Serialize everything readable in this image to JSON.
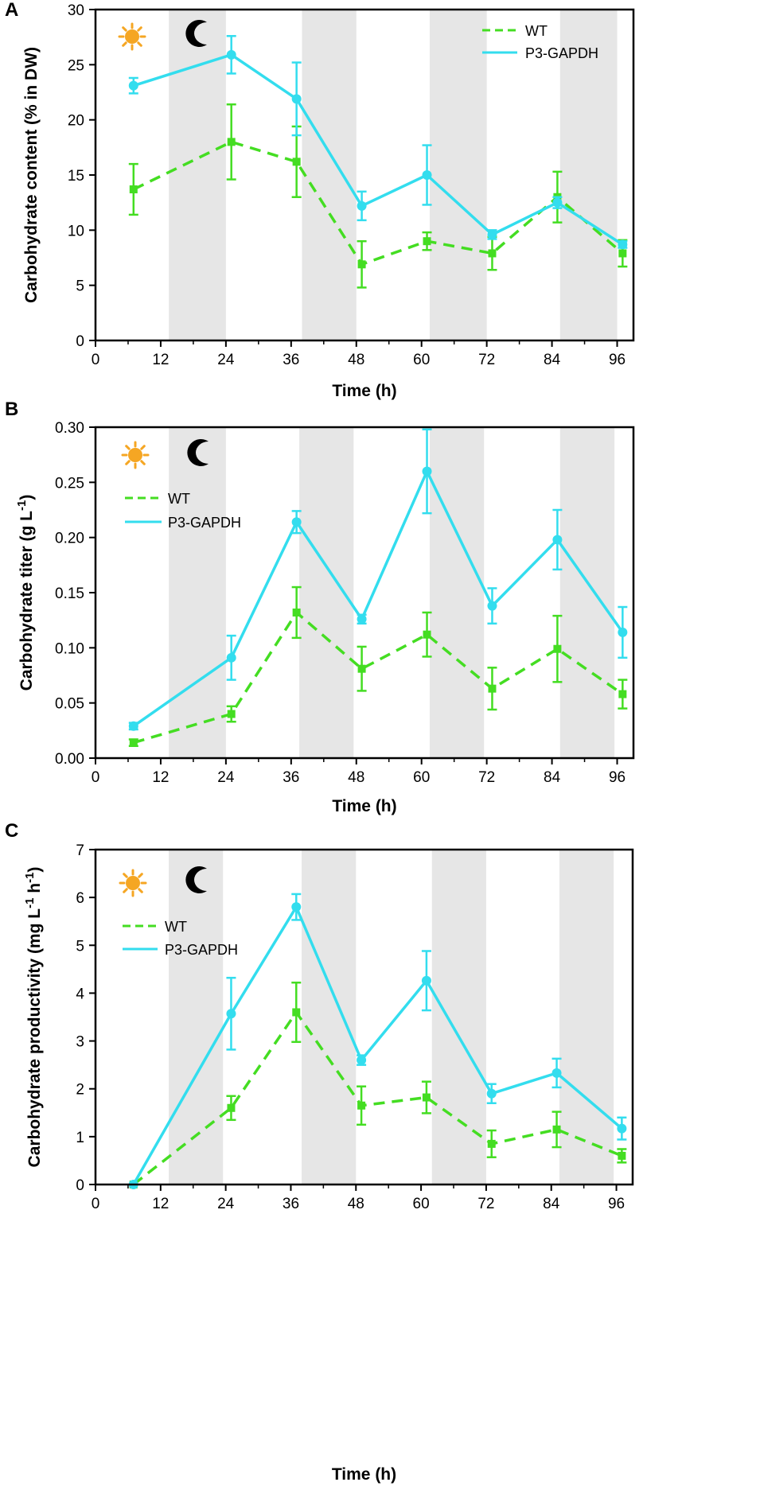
{
  "colors": {
    "wt": "#44dd22",
    "p3": "#33ddee",
    "shade": "#e6e6e6",
    "sun": "#f5a623",
    "moon": "#000000",
    "axis": "#000000"
  },
  "legend": {
    "wt": "WT",
    "p3": "P3-GAPDH"
  },
  "icons": {
    "sun": "sun-icon",
    "moon": "moon-icon"
  },
  "chart_data": [
    {
      "panel_label": "A",
      "type": "line",
      "title": "",
      "xlabel": "Time (h)",
      "ylabel": "Carbohydrate content (% in DW)",
      "xlim": [
        0,
        99
      ],
      "ylim": [
        0,
        30
      ],
      "xticks": [
        "0",
        "12",
        "24",
        "36",
        "48",
        "60",
        "72",
        "84",
        "96"
      ],
      "yticks": [
        "0",
        "5",
        "10",
        "15",
        "20",
        "25",
        "30"
      ],
      "dark_periods": [
        [
          13.5,
          24
        ],
        [
          38,
          48
        ],
        [
          61.5,
          72
        ],
        [
          85.5,
          96
        ]
      ],
      "legend_position": "top-right",
      "x": [
        7,
        25,
        37,
        49,
        61,
        73,
        85,
        97
      ],
      "series": [
        {
          "name": "WT",
          "values": [
            13.7,
            18.0,
            16.2,
            6.9,
            9.0,
            7.9,
            13.0,
            7.9
          ],
          "errors": [
            2.3,
            3.4,
            3.2,
            2.1,
            0.8,
            1.5,
            2.3,
            1.2
          ]
        },
        {
          "name": "P3-GAPDH",
          "values": [
            23.1,
            25.9,
            21.9,
            12.2,
            15.0,
            9.6,
            12.5,
            8.7
          ],
          "errors": [
            0.7,
            1.7,
            3.3,
            1.3,
            2.7,
            0.4,
            0.5,
            0.3
          ]
        }
      ]
    },
    {
      "panel_label": "B",
      "type": "line",
      "title": "",
      "xlabel": "Time (h)",
      "ylabel": "Carbohydrate titer  (g L",
      "ylabel_sup": "-1",
      "ylabel_end": ")",
      "xlim": [
        0,
        99
      ],
      "ylim": [
        0,
        0.3
      ],
      "xticks": [
        "0",
        "12",
        "24",
        "36",
        "48",
        "60",
        "72",
        "84",
        "96"
      ],
      "yticks": [
        "0.00",
        "0.05",
        "0.10",
        "0.15",
        "0.20",
        "0.25",
        "0.30"
      ],
      "dark_periods": [
        [
          13.5,
          24
        ],
        [
          37.5,
          47.5
        ],
        [
          61.5,
          71.5
        ],
        [
          85.5,
          95.5
        ]
      ],
      "legend_position": "top-left",
      "x": [
        7,
        25,
        37,
        49,
        61,
        73,
        85,
        97
      ],
      "series": [
        {
          "name": "WT",
          "values": [
            0.014,
            0.04,
            0.132,
            0.081,
            0.112,
            0.063,
            0.099,
            0.058
          ],
          "errors": [
            0.003,
            0.007,
            0.023,
            0.02,
            0.02,
            0.019,
            0.03,
            0.013
          ]
        },
        {
          "name": "P3-GAPDH",
          "values": [
            0.029,
            0.091,
            0.214,
            0.126,
            0.26,
            0.138,
            0.198,
            0.114
          ],
          "errors": [
            0.003,
            0.02,
            0.01,
            0.004,
            0.038,
            0.016,
            0.027,
            0.023
          ]
        }
      ]
    },
    {
      "panel_label": "C",
      "type": "line",
      "title": "",
      "xlabel": "Time (h)",
      "ylabel": "Carbohydrate productivity   (mg L",
      "ylabel_sup": "-1",
      "ylabel_mid": " h",
      "ylabel_sup2": "-1",
      "ylabel_end": ")",
      "xlim": [
        0,
        99
      ],
      "ylim": [
        0,
        7
      ],
      "xticks": [
        "0",
        "12",
        "24",
        "36",
        "48",
        "60",
        "72",
        "84",
        "96"
      ],
      "yticks": [
        "0",
        "1",
        "2",
        "3",
        "4",
        "5",
        "6",
        "7"
      ],
      "dark_periods": [
        [
          13.5,
          23.5
        ],
        [
          38,
          48
        ],
        [
          62,
          72
        ],
        [
          85.5,
          95.5
        ]
      ],
      "legend_position": "top-left",
      "x": [
        7,
        25,
        37,
        49,
        61,
        73,
        85,
        97
      ],
      "series": [
        {
          "name": "WT",
          "values": [
            0.0,
            1.6,
            3.6,
            1.65,
            1.82,
            0.85,
            1.15,
            0.6
          ],
          "errors": [
            0,
            0.25,
            0.62,
            0.4,
            0.33,
            0.28,
            0.37,
            0.14
          ]
        },
        {
          "name": "P3-GAPDH",
          "values": [
            0.0,
            3.57,
            5.8,
            2.6,
            4.26,
            1.9,
            2.33,
            1.17
          ],
          "errors": [
            0,
            0.75,
            0.27,
            0.1,
            0.62,
            0.2,
            0.3,
            0.23
          ]
        }
      ]
    }
  ]
}
